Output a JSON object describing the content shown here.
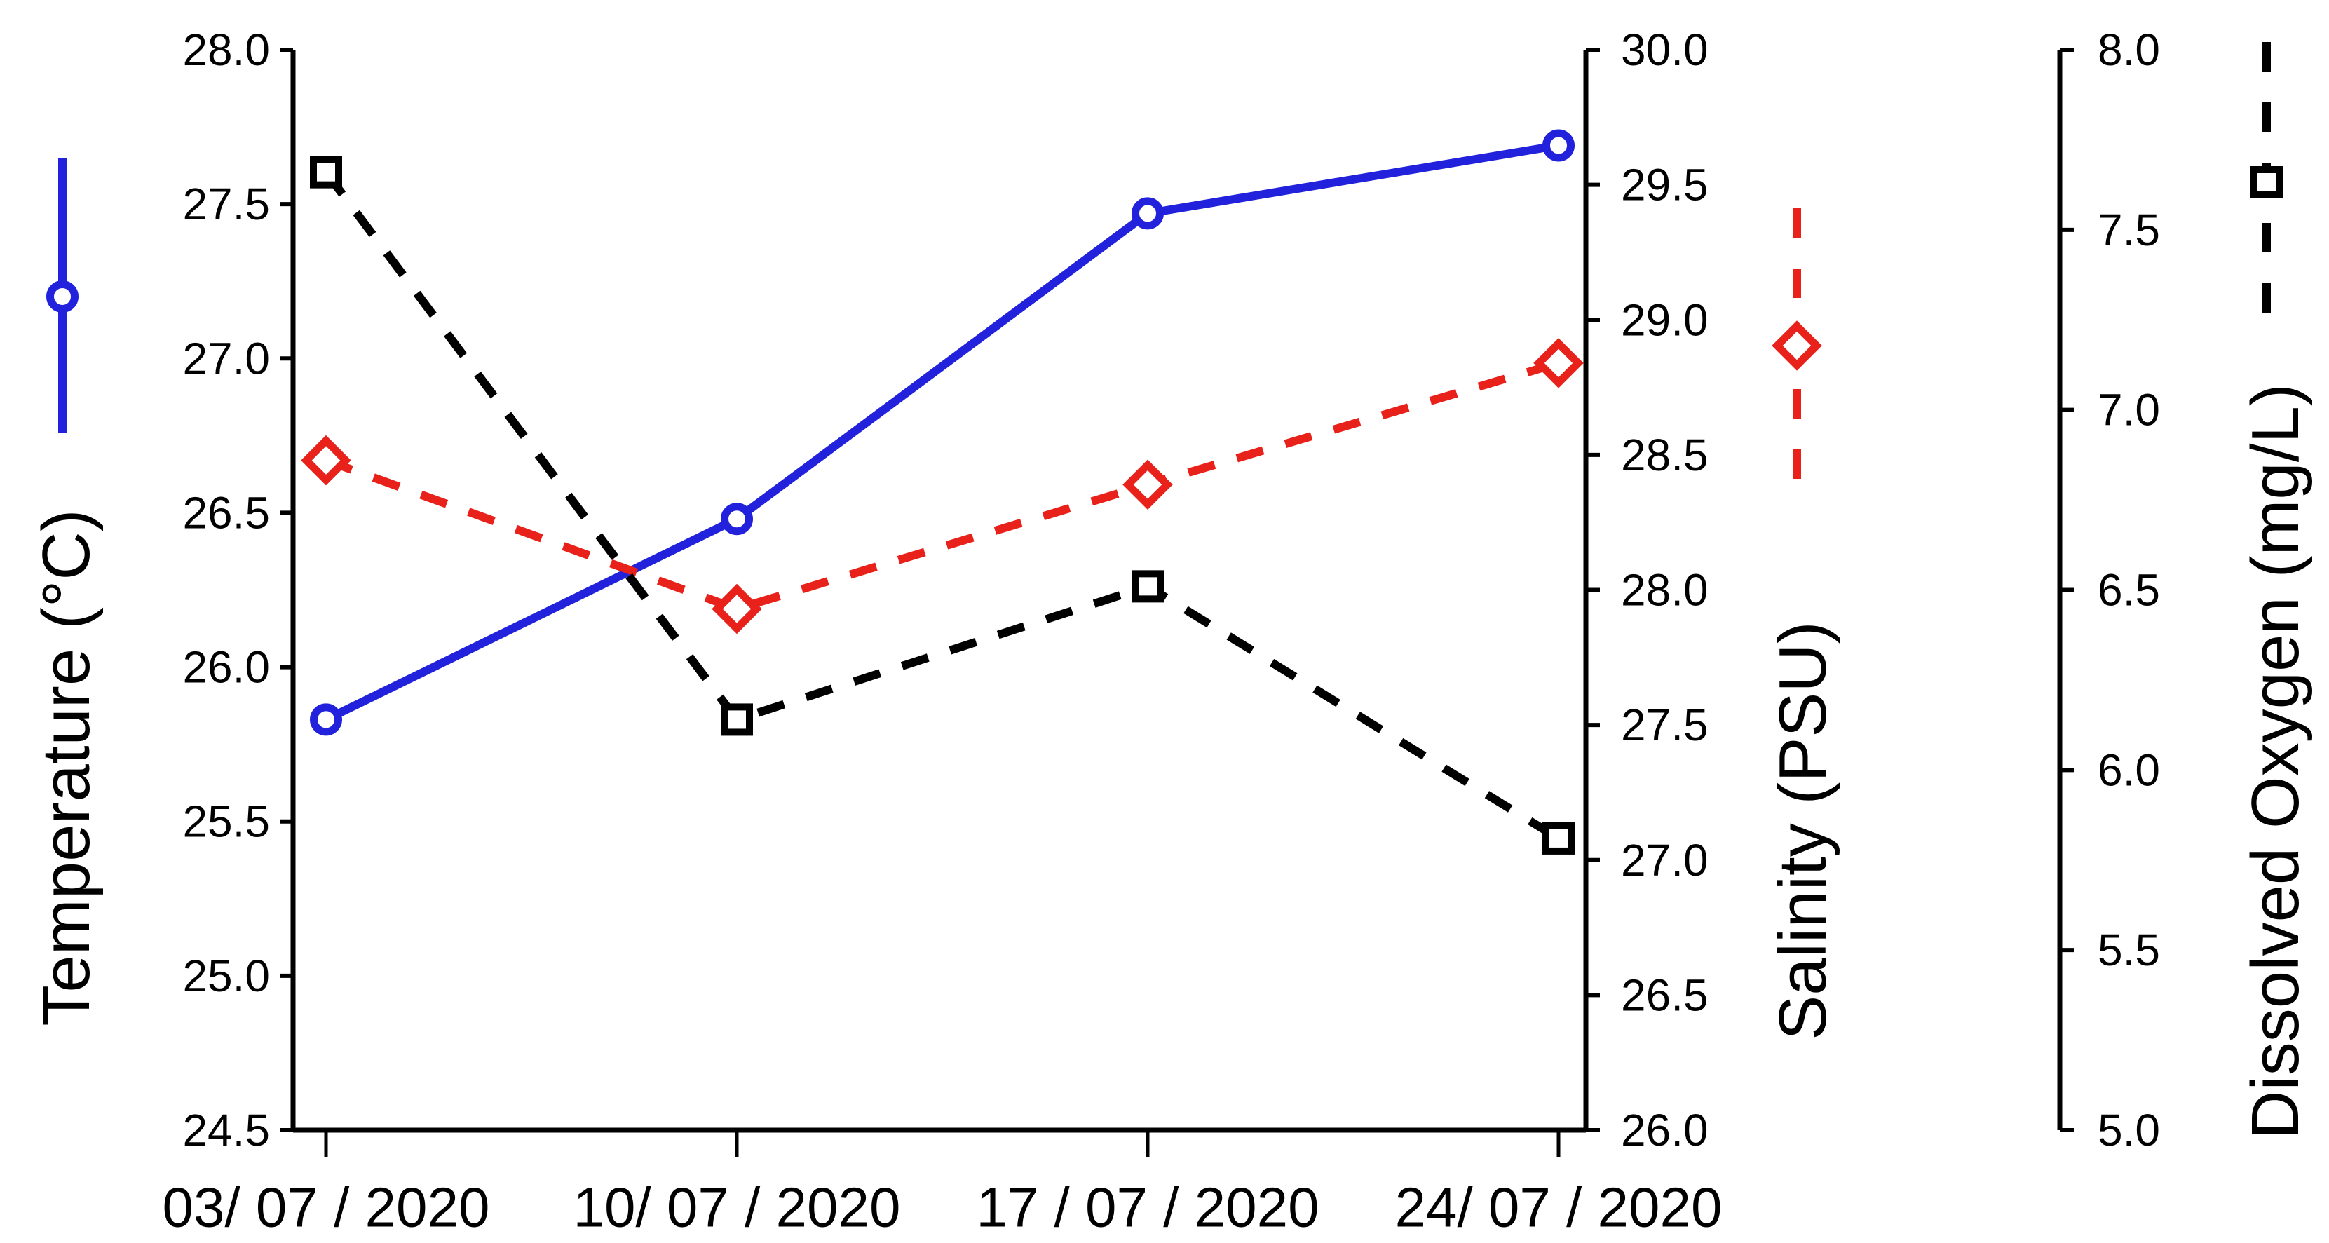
{
  "chart_data": {
    "type": "line",
    "title": "",
    "grid": false,
    "legend_position": "outside-vertical-swatches",
    "categories": [
      "03/ 07 / 2020",
      "10/ 07 / 2020",
      "17 / 07 / 2020",
      "24/ 07 / 2020"
    ],
    "series": [
      {
        "name": "Temperature",
        "axis": "temperature",
        "values": [
          25.83,
          26.48,
          27.47,
          27.69
        ],
        "color": "#2222dd",
        "line_style": "solid",
        "marker": "circle"
      },
      {
        "name": "Salinity",
        "axis": "salinity",
        "values": [
          28.48,
          27.93,
          28.39,
          28.84
        ],
        "color": "#e8211b",
        "line_style": "dashed",
        "marker": "diamond"
      },
      {
        "name": "Dissolved Oxygen",
        "axis": "dissolved_oxygen",
        "values": [
          7.66,
          6.14,
          6.51,
          5.81
        ],
        "color": "#000000",
        "line_style": "dashed",
        "marker": "square"
      }
    ],
    "axes": {
      "temperature": {
        "label": "Temperature (°C)",
        "min": 24.5,
        "max": 28.0,
        "tick_step": 0.5,
        "tick_labels": [
          "28.0",
          "27.5",
          "27.0",
          "26.5",
          "26.0",
          "25.5",
          "25.0",
          "24.5"
        ],
        "side": "left"
      },
      "salinity": {
        "label": "Salinity (PSU)",
        "min": 26.0,
        "max": 30.0,
        "tick_step": 0.5,
        "tick_labels": [
          "30.0",
          "29.5",
          "29.0",
          "28.5",
          "28.0",
          "27.5",
          "27.0",
          "26.5",
          "26.0"
        ],
        "side": "right-inner"
      },
      "dissolved_oxygen": {
        "label": "Dissolved Oxygen (mg/L)",
        "min": 5.0,
        "max": 8.0,
        "tick_step": 0.5,
        "tick_labels": [
          "8.0",
          "7.5",
          "7.0",
          "6.5",
          "6.0",
          "5.5",
          "5.0"
        ],
        "side": "right-outer"
      }
    },
    "x_axis": {
      "tick_labels": [
        "03/ 07 / 2020",
        "10/ 07 / 2020",
        "17 / 07 / 2020",
        "24/ 07 / 2020"
      ]
    }
  }
}
